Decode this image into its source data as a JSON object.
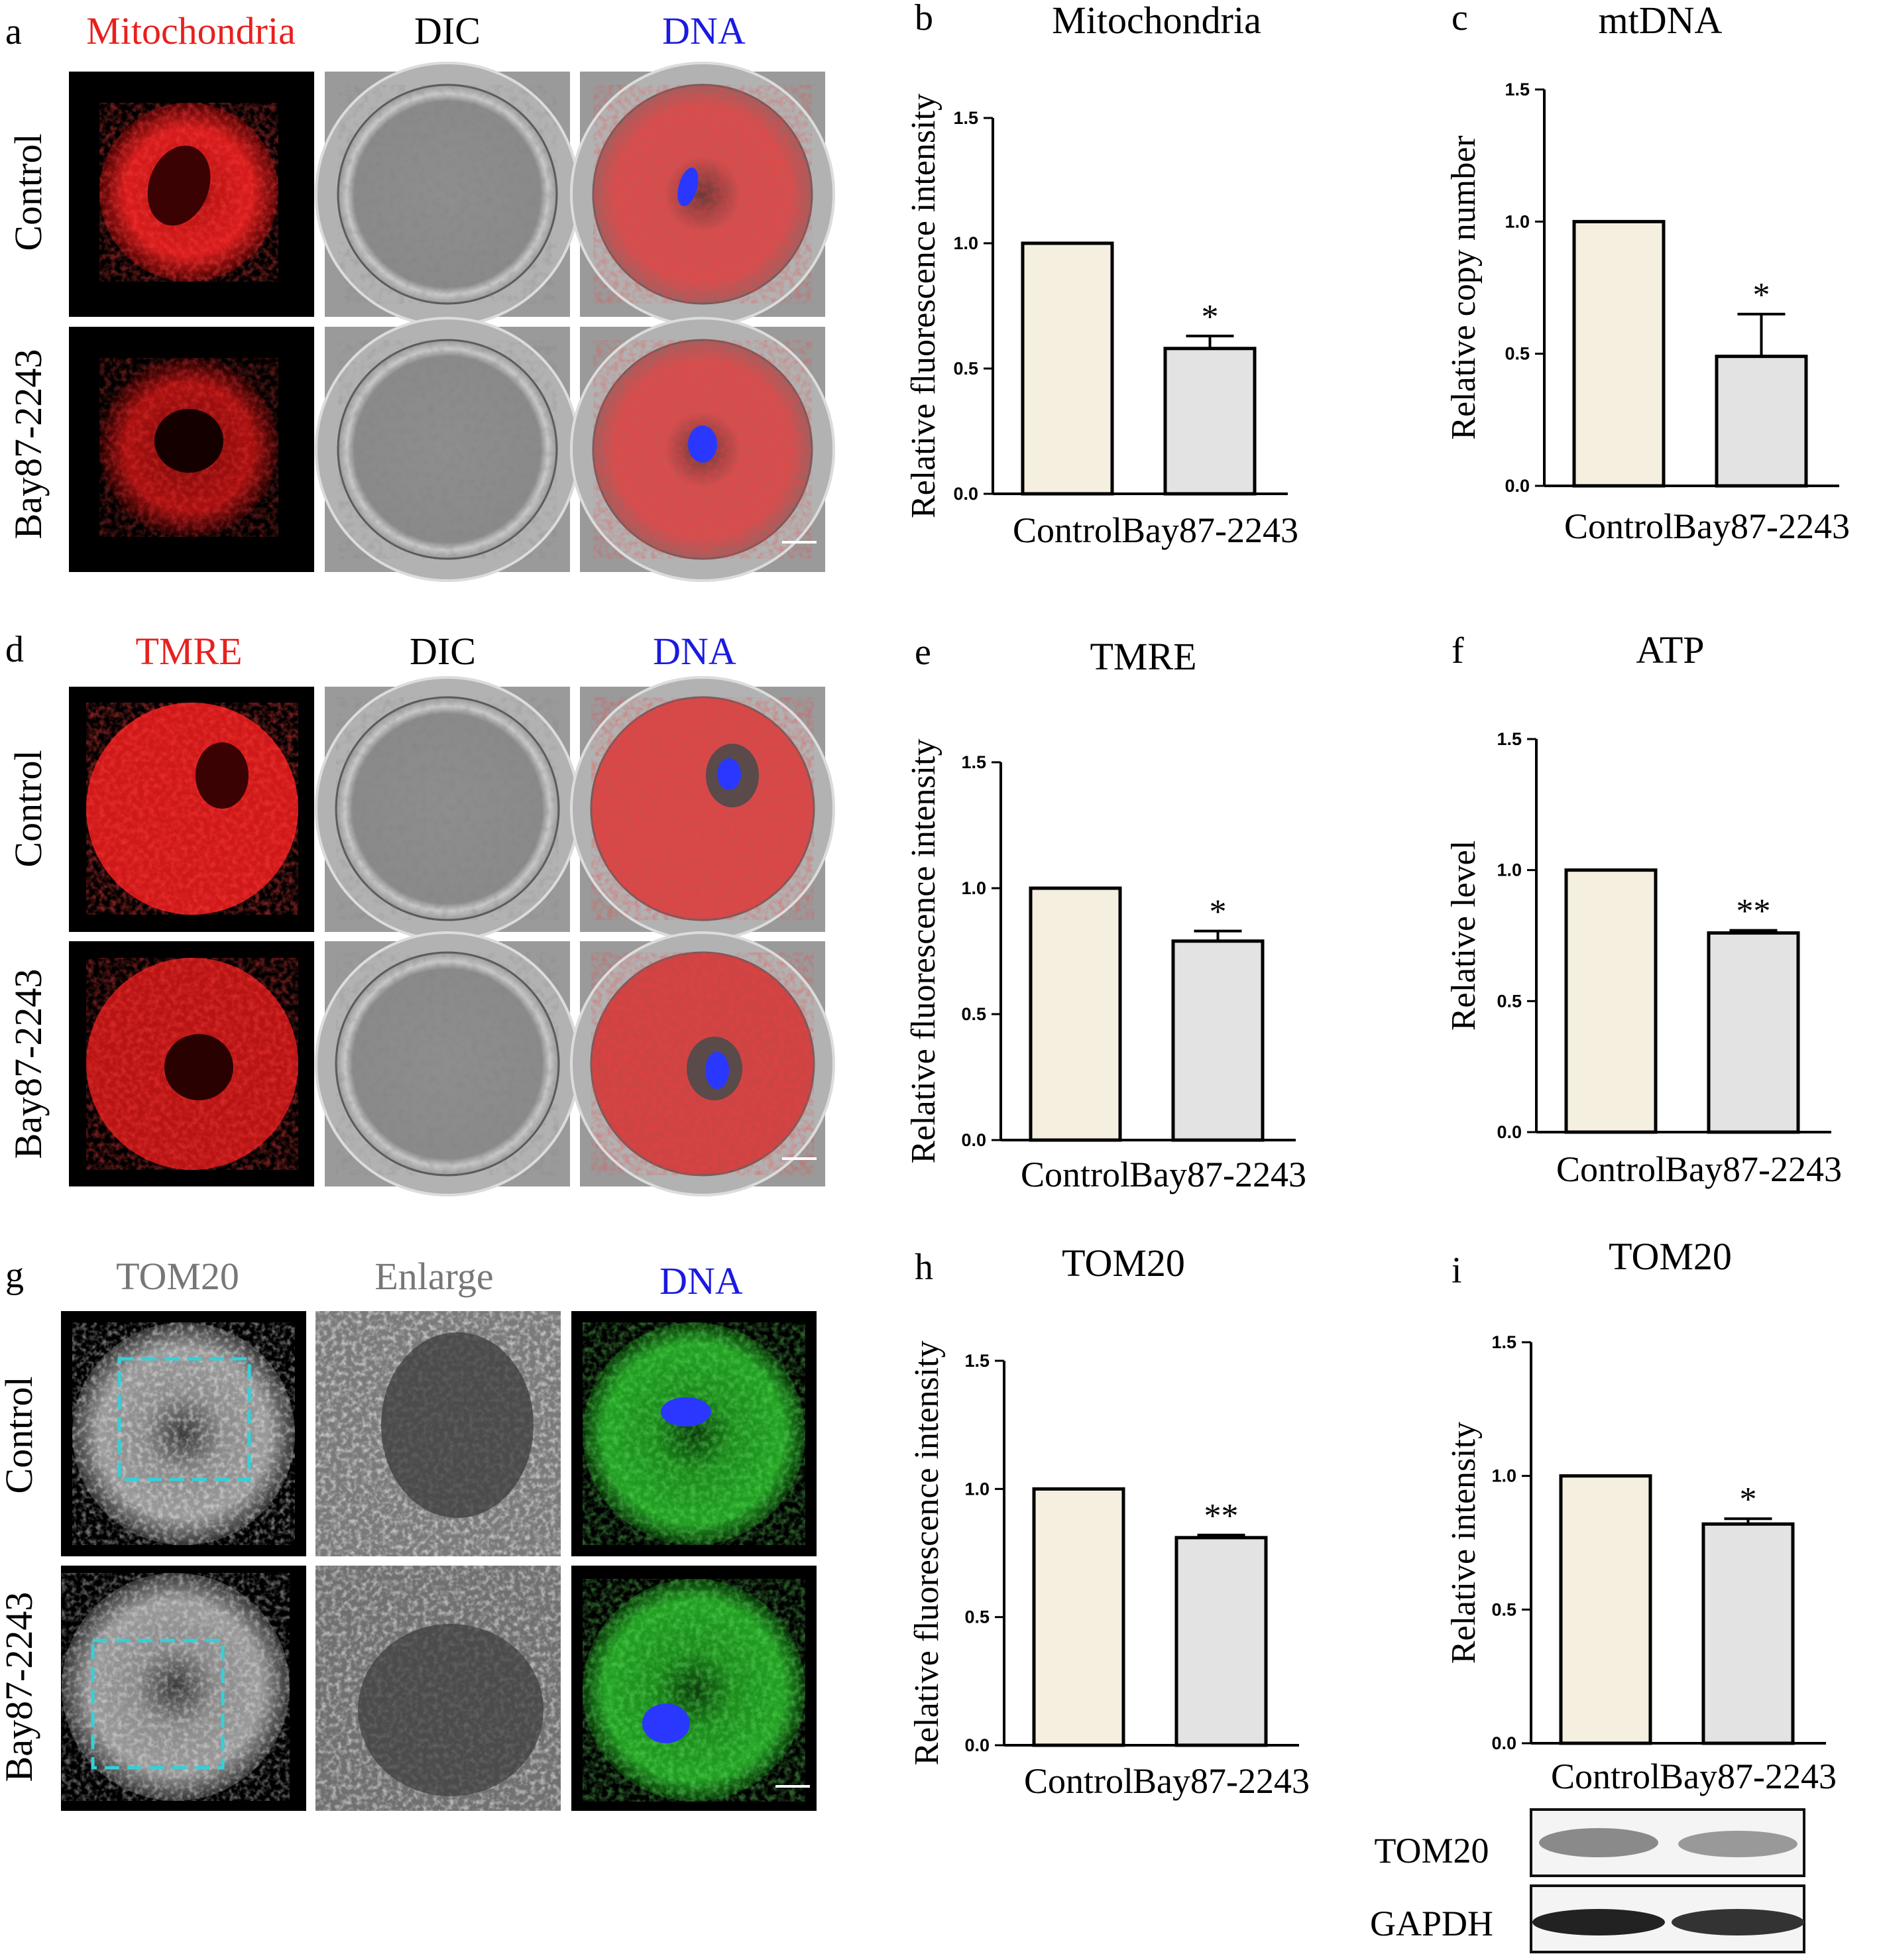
{
  "colors": {
    "red_label": "#e8201e",
    "blue_label": "#1a1ae0",
    "gray_label": "#777777",
    "control_bar": "#f4efdf",
    "treated_bar": "#e3e3e3",
    "cyan_box": "#35d0d8"
  },
  "panel_a": {
    "letter": "a",
    "headers": [
      "Mitochondria",
      "DIC",
      "DNA"
    ],
    "row_labels": [
      "Control",
      "Bay87-2243"
    ]
  },
  "panel_d": {
    "letter": "d",
    "headers": [
      "TMRE",
      "DIC",
      "DNA"
    ],
    "row_labels": [
      "Control",
      "Bay87-2243"
    ]
  },
  "panel_g": {
    "letter": "g",
    "headers": [
      "TOM20",
      "Enlarge",
      "DNA"
    ],
    "row_labels": [
      "Control",
      "Bay87-2243"
    ]
  },
  "panel_i_blot": {
    "labels": [
      "TOM20",
      "GAPDH"
    ]
  },
  "chart_data": [
    {
      "id": "b",
      "letter": "b",
      "type": "bar",
      "title": "Mitochondria",
      "ylabel": "Relative fluorescence intensity",
      "categories": [
        "Control",
        "Bay87-2243"
      ],
      "values": [
        1.0,
        0.58
      ],
      "errors": [
        0,
        0.05
      ],
      "significance": [
        "",
        "*"
      ],
      "ylim": [
        0,
        1.5
      ],
      "ticks": [
        "0.0",
        "0.5",
        "1.0",
        "1.5"
      ]
    },
    {
      "id": "c",
      "letter": "c",
      "type": "bar",
      "title": "mtDNA",
      "ylabel": "Relative copy number",
      "categories": [
        "Control",
        "Bay87-2243"
      ],
      "values": [
        1.0,
        0.49
      ],
      "errors": [
        0,
        0.16
      ],
      "significance": [
        "",
        "*"
      ],
      "ylim": [
        0,
        1.5
      ],
      "ticks": [
        "0.0",
        "0.5",
        "1.0",
        "1.5"
      ]
    },
    {
      "id": "e",
      "letter": "e",
      "type": "bar",
      "title": "TMRE",
      "ylabel": "Relative fluorescence intensity",
      "categories": [
        "Control",
        "Bay87-2243"
      ],
      "values": [
        1.0,
        0.79
      ],
      "errors": [
        0,
        0.04
      ],
      "significance": [
        "",
        "*"
      ],
      "ylim": [
        0,
        1.5
      ],
      "ticks": [
        "0.0",
        "0.5",
        "1.0",
        "1.5"
      ]
    },
    {
      "id": "f",
      "letter": "f",
      "type": "bar",
      "title": "ATP",
      "ylabel": "Relative  level",
      "categories": [
        "Control",
        "Bay87-2243"
      ],
      "values": [
        1.0,
        0.76
      ],
      "errors": [
        0,
        0.01
      ],
      "significance": [
        "",
        "**"
      ],
      "ylim": [
        0,
        1.5
      ],
      "ticks": [
        "0.0",
        "0.5",
        "1.0",
        "1.5"
      ]
    },
    {
      "id": "h",
      "letter": "h",
      "type": "bar",
      "title": "TOM20",
      "ylabel": "Relative fluorescence intensity",
      "categories": [
        "Control",
        "Bay87-2243"
      ],
      "values": [
        1.0,
        0.81
      ],
      "errors": [
        0,
        0.01
      ],
      "significance": [
        "",
        "**"
      ],
      "ylim": [
        0,
        1.5
      ],
      "ticks": [
        "0.0",
        "0.5",
        "1.0",
        "1.5"
      ]
    },
    {
      "id": "i",
      "letter": "i",
      "type": "bar",
      "title": "TOM20",
      "ylabel": "Relative intensity",
      "categories": [
        "Control",
        "Bay87-2243"
      ],
      "values": [
        1.0,
        0.82
      ],
      "errors": [
        0,
        0.02
      ],
      "significance": [
        "",
        "*"
      ],
      "ylim": [
        0,
        1.5
      ],
      "ticks": [
        "0.0",
        "0.5",
        "1.0",
        "1.5"
      ]
    }
  ]
}
